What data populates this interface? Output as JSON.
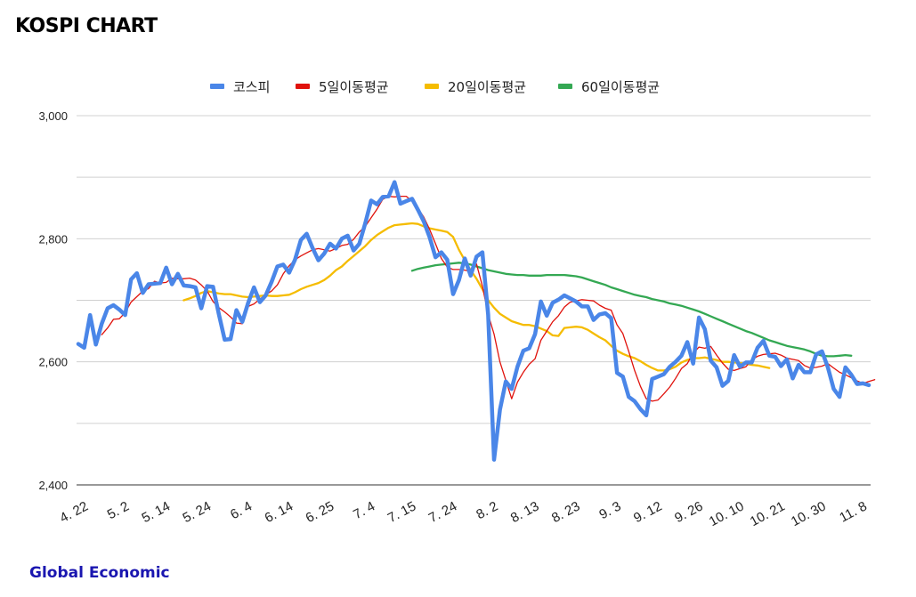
{
  "page": {
    "title": "KOSPI CHART",
    "footer": "Global Economic"
  },
  "chart_data": {
    "type": "line",
    "title": "KOSPI CHART",
    "xlabel": "",
    "ylabel": "",
    "ylim": [
      2400,
      3000
    ],
    "y_ticks": [
      "2,400",
      "2,600",
      "2,800",
      "3,000"
    ],
    "y_tick_values": [
      2400,
      2600,
      2800,
      3000
    ],
    "grid": true,
    "legend_position": "top",
    "x_tick_labels": [
      "4. 22",
      "5. 2",
      "5. 14",
      "5. 24",
      "6. 4",
      "6. 14",
      "6. 25",
      "7. 4",
      "7. 15",
      "7. 24",
      "8. 2",
      "8. 13",
      "8. 23",
      "9. 3",
      "9. 12",
      "9. 26",
      "10. 10",
      "10. 21",
      "10. 30",
      "11. 8"
    ],
    "x_tick_indices": [
      0,
      7,
      14,
      21,
      28,
      35,
      42,
      49,
      56,
      63,
      70,
      77,
      84,
      91,
      98,
      105,
      112,
      119,
      126,
      133
    ],
    "series": [
      {
        "name": "코스피",
        "color": "#4a86e8",
        "start_index": 0,
        "values": [
          2629,
          2623,
          2676,
          2628,
          2662,
          2687,
          2692,
          2685,
          2676,
          2734,
          2744,
          2712,
          2726,
          2727,
          2728,
          2753,
          2726,
          2743,
          2724,
          2723,
          2721,
          2687,
          2723,
          2722,
          2677,
          2636,
          2637,
          2684,
          2665,
          2696,
          2721,
          2697,
          2708,
          2730,
          2755,
          2758,
          2745,
          2766,
          2798,
          2808,
          2785,
          2765,
          2776,
          2792,
          2784,
          2800,
          2805,
          2781,
          2792,
          2825,
          2862,
          2856,
          2868,
          2869,
          2892,
          2857,
          2861,
          2865,
          2847,
          2828,
          2802,
          2770,
          2778,
          2766,
          2710,
          2733,
          2768,
          2740,
          2771,
          2778,
          2676,
          2441,
          2522,
          2568,
          2556,
          2592,
          2618,
          2622,
          2645,
          2698,
          2675,
          2696,
          2701,
          2708,
          2703,
          2698,
          2690,
          2690,
          2668,
          2677,
          2679,
          2671,
          2582,
          2576,
          2543,
          2536,
          2523,
          2513,
          2572,
          2576,
          2580,
          2592,
          2600,
          2610,
          2632,
          2597,
          2672,
          2653,
          2602,
          2591,
          2561,
          2569,
          2611,
          2592,
          2599,
          2599,
          2623,
          2634,
          2610,
          2608,
          2593,
          2604,
          2573,
          2595,
          2583,
          2583,
          2612,
          2617,
          2591,
          2556,
          2543,
          2591,
          2579,
          2564,
          2565,
          2562
        ]
      },
      {
        "name": "5일이동평균",
        "color": "#e0120c",
        "start_index": 4,
        "values": [
          2644,
          2655,
          2669,
          2670,
          2680,
          2697,
          2706,
          2715,
          2719,
          2731,
          2728,
          2729,
          2736,
          2735,
          2735,
          2736,
          2733,
          2725,
          2715,
          2698,
          2688,
          2681,
          2673,
          2663,
          2662,
          2690,
          2694,
          2702,
          2709,
          2715,
          2725,
          2743,
          2756,
          2766,
          2772,
          2777,
          2782,
          2784,
          2782,
          2780,
          2784,
          2789,
          2791,
          2799,
          2811,
          2820,
          2834,
          2848,
          2864,
          2869,
          2868,
          2869,
          2869,
          2861,
          2850,
          2835,
          2815,
          2792,
          2768,
          2754,
          2750,
          2750,
          2749,
          2747,
          2759,
          2723,
          2677,
          2645,
          2600,
          2570,
          2540,
          2567,
          2583,
          2596,
          2605,
          2635,
          2650,
          2665,
          2675,
          2689,
          2697,
          2699,
          2701,
          2700,
          2699,
          2692,
          2687,
          2684,
          2660,
          2646,
          2617,
          2586,
          2560,
          2540,
          2536,
          2538,
          2548,
          2559,
          2573,
          2589,
          2597,
          2614,
          2624,
          2622,
          2625,
          2611,
          2598,
          2588,
          2586,
          2589,
          2592,
          2603,
          2609,
          2612,
          2613,
          2614,
          2611,
          2606,
          2604,
          2602,
          2594,
          2590,
          2591,
          2593,
          2597,
          2590,
          2583,
          2579,
          2574,
          2569,
          2565,
          2568,
          2571
        ]
      },
      {
        "name": "20일이동평균",
        "color": "#f5bc00",
        "start_index": 18,
        "values": [
          2700,
          2703,
          2707,
          2712,
          2715,
          2713,
          2711,
          2710,
          2710,
          2708,
          2706,
          2705,
          2706,
          2707,
          2708,
          2707,
          2707,
          2708,
          2709,
          2713,
          2718,
          2722,
          2725,
          2728,
          2733,
          2740,
          2749,
          2755,
          2764,
          2772,
          2780,
          2788,
          2798,
          2806,
          2812,
          2818,
          2822,
          2823,
          2824,
          2825,
          2824,
          2820,
          2817,
          2815,
          2813,
          2811,
          2803,
          2782,
          2765,
          2749,
          2735,
          2718,
          2700,
          2688,
          2678,
          2672,
          2666,
          2663,
          2660,
          2660,
          2658,
          2654,
          2650,
          2643,
          2642,
          2655,
          2656,
          2657,
          2656,
          2652,
          2646,
          2640,
          2635,
          2626,
          2618,
          2613,
          2609,
          2606,
          2601,
          2595,
          2590,
          2586,
          2586,
          2588,
          2592,
          2599,
          2603,
          2606,
          2606,
          2607,
          2605,
          2603,
          2600,
          2600,
          2599,
          2598,
          2597,
          2595,
          2594,
          2592,
          2590
        ]
      },
      {
        "name": "60일이동평균",
        "color": "#34a853",
        "start_index": 57,
        "values": [
          2748,
          2751,
          2753,
          2755,
          2757,
          2758,
          2759,
          2760,
          2761,
          2760,
          2758,
          2755,
          2752,
          2749,
          2747,
          2745,
          2743,
          2742,
          2741,
          2741,
          2740,
          2740,
          2740,
          2741,
          2741,
          2741,
          2741,
          2740,
          2739,
          2737,
          2734,
          2731,
          2728,
          2725,
          2721,
          2718,
          2715,
          2712,
          2709,
          2707,
          2705,
          2702,
          2700,
          2698,
          2695,
          2693,
          2691,
          2688,
          2685,
          2682,
          2678,
          2674,
          2670,
          2666,
          2662,
          2658,
          2654,
          2650,
          2647,
          2643,
          2639,
          2635,
          2632,
          2629,
          2626,
          2624,
          2622,
          2620,
          2617,
          2613,
          2610,
          2609,
          2609,
          2610,
          2611,
          2610
        ]
      }
    ]
  }
}
